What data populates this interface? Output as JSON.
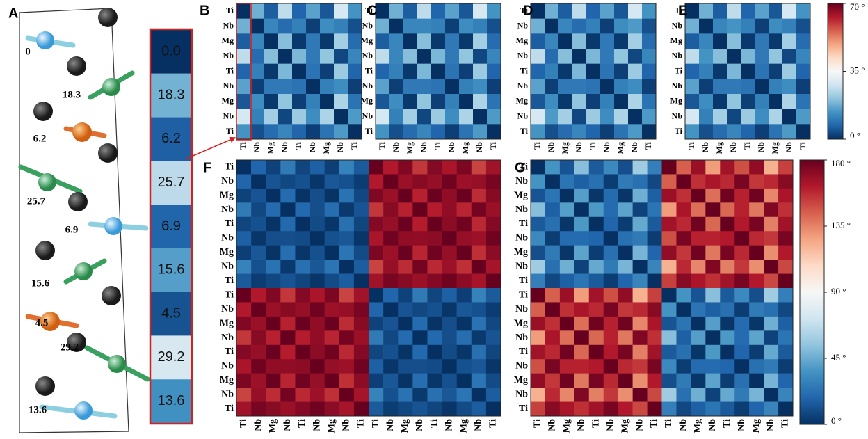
{
  "chart_data": [
    {
      "type": "column-map",
      "letter": "A",
      "values": [
        0,
        18.3,
        6.2,
        25.7,
        6.9,
        15.6,
        4.5,
        29.2,
        13.6
      ],
      "value_labels": [
        "0.0",
        "18.3",
        "6.2",
        "25.7",
        "6.9",
        "15.6",
        "4.5",
        "29.2",
        "13.6"
      ],
      "clim": [
        0,
        70
      ],
      "colormap": "RdBu_r"
    },
    {
      "type": "heatmap",
      "letter": "B",
      "categories": [
        "Ti",
        "Nb",
        "Mg",
        "Nb",
        "Ti",
        "Nb",
        "Mg",
        "Nb",
        "Ti"
      ],
      "clim": [
        0,
        70
      ],
      "colormap": "RdBu_r",
      "values": [
        [
          0,
          18,
          6,
          26,
          7,
          16,
          5,
          29,
          14
        ],
        [
          18,
          0,
          12,
          8,
          11,
          2,
          13,
          11,
          4
        ],
        [
          6,
          12,
          0,
          20,
          1,
          10,
          1,
          23,
          8
        ],
        [
          26,
          8,
          20,
          0,
          19,
          10,
          21,
          3,
          12
        ],
        [
          7,
          11,
          1,
          19,
          0,
          9,
          2,
          22,
          7
        ],
        [
          16,
          2,
          10,
          10,
          9,
          0,
          11,
          13,
          2
        ],
        [
          5,
          13,
          1,
          21,
          2,
          11,
          0,
          24,
          9
        ],
        [
          29,
          11,
          23,
          3,
          22,
          13,
          24,
          0,
          15
        ],
        [
          14,
          4,
          8,
          12,
          7,
          2,
          9,
          15,
          0
        ]
      ]
    },
    {
      "type": "heatmap",
      "letter": "C",
      "categories": [
        "Ti",
        "Nb",
        "Mg",
        "Nb",
        "Ti",
        "Nb",
        "Mg",
        "Nb",
        "Ti"
      ],
      "clim": [
        0,
        70
      ],
      "colormap": "RdBu_r",
      "values": [
        [
          0,
          18,
          6,
          26,
          7,
          16,
          5,
          29,
          14
        ],
        [
          18,
          0,
          12,
          12,
          11,
          2,
          13,
          11,
          4
        ],
        [
          6,
          12,
          0,
          20,
          1,
          10,
          1,
          23,
          8
        ],
        [
          26,
          12,
          20,
          0,
          19,
          10,
          21,
          3,
          12
        ],
        [
          7,
          11,
          1,
          19,
          0,
          9,
          2,
          22,
          7
        ],
        [
          16,
          2,
          10,
          10,
          9,
          0,
          11,
          13,
          2
        ],
        [
          5,
          13,
          1,
          21,
          2,
          11,
          0,
          24,
          9
        ],
        [
          29,
          11,
          23,
          3,
          22,
          13,
          24,
          0,
          15
        ],
        [
          14,
          4,
          8,
          12,
          7,
          2,
          9,
          15,
          0
        ]
      ]
    },
    {
      "type": "heatmap",
      "letter": "D",
      "categories": [
        "Ti",
        "Nb",
        "Mg",
        "Nb",
        "Ti",
        "Nb",
        "Mg",
        "Nb",
        "Ti"
      ],
      "clim": [
        0,
        70
      ],
      "colormap": "RdBu_r",
      "values": [
        [
          0,
          18,
          6,
          26,
          7,
          16,
          5,
          29,
          14
        ],
        [
          18,
          0,
          12,
          8,
          11,
          2,
          13,
          15,
          4
        ],
        [
          6,
          12,
          0,
          20,
          1,
          10,
          1,
          23,
          8
        ],
        [
          26,
          8,
          20,
          0,
          19,
          10,
          21,
          3,
          12
        ],
        [
          7,
          11,
          1,
          19,
          0,
          9,
          2,
          22,
          7
        ],
        [
          16,
          2,
          10,
          10,
          9,
          0,
          11,
          13,
          2
        ],
        [
          5,
          13,
          1,
          21,
          2,
          11,
          0,
          24,
          9
        ],
        [
          29,
          15,
          23,
          3,
          22,
          13,
          24,
          0,
          15
        ],
        [
          14,
          4,
          8,
          12,
          7,
          2,
          9,
          15,
          0
        ]
      ]
    },
    {
      "type": "heatmap",
      "letter": "E",
      "categories": [
        "Ti",
        "Nb",
        "Mg",
        "Nb",
        "Ti",
        "Nb",
        "Mg",
        "Nb",
        "Ti"
      ],
      "clim": [
        0,
        70
      ],
      "colormap": "RdBu_r",
      "values": [
        [
          0,
          18,
          6,
          26,
          7,
          16,
          5,
          29,
          14
        ],
        [
          18,
          0,
          12,
          14,
          11,
          2,
          13,
          11,
          4
        ],
        [
          6,
          12,
          0,
          20,
          1,
          10,
          1,
          23,
          8
        ],
        [
          26,
          14,
          20,
          0,
          19,
          10,
          21,
          3,
          12
        ],
        [
          7,
          11,
          1,
          19,
          0,
          9,
          2,
          22,
          7
        ],
        [
          16,
          2,
          10,
          10,
          9,
          0,
          11,
          13,
          2
        ],
        [
          5,
          13,
          1,
          21,
          2,
          11,
          0,
          24,
          9
        ],
        [
          29,
          11,
          23,
          3,
          22,
          13,
          24,
          0,
          15
        ],
        [
          14,
          4,
          8,
          12,
          7,
          2,
          9,
          15,
          0
        ]
      ],
      "colorbar": {
        "lim": [
          0,
          70
        ],
        "ticks": [
          {
            "value": 70,
            "label": "70 °"
          },
          {
            "value": 35,
            "label": "35 °"
          },
          {
            "value": 0,
            "label": "0 °"
          }
        ]
      }
    },
    {
      "type": "heatmap",
      "letter": "F",
      "categories": [
        "Ti",
        "Nb",
        "Mg",
        "Nb",
        "Ti",
        "Nb",
        "Mg",
        "Nb",
        "Ti",
        "Ti",
        "Nb",
        "Mg",
        "Nb",
        "Ti",
        "Nb",
        "Mg",
        "Nb",
        "Ti"
      ],
      "clim": [
        0,
        180
      ],
      "colormap": "RdBu_r",
      "values": [
        [
          0,
          18,
          6,
          26,
          7,
          16,
          5,
          29,
          14,
          180,
          162,
          174,
          154,
          173,
          164,
          175,
          151,
          166
        ],
        [
          18,
          0,
          12,
          8,
          11,
          2,
          13,
          11,
          4,
          162,
          180,
          168,
          172,
          169,
          178,
          167,
          169,
          176
        ],
        [
          6,
          12,
          0,
          20,
          1,
          10,
          1,
          23,
          8,
          174,
          168,
          180,
          160,
          179,
          170,
          179,
          157,
          172
        ],
        [
          26,
          8,
          20,
          0,
          19,
          10,
          21,
          3,
          12,
          154,
          172,
          160,
          180,
          161,
          170,
          159,
          177,
          168
        ],
        [
          7,
          11,
          1,
          19,
          0,
          9,
          2,
          22,
          7,
          173,
          169,
          179,
          161,
          180,
          171,
          178,
          158,
          173
        ],
        [
          16,
          2,
          10,
          10,
          9,
          0,
          11,
          13,
          2,
          164,
          178,
          170,
          170,
          171,
          180,
          169,
          167,
          178
        ],
        [
          5,
          13,
          1,
          21,
          2,
          11,
          0,
          24,
          9,
          175,
          167,
          179,
          159,
          178,
          169,
          180,
          156,
          171
        ],
        [
          29,
          11,
          23,
          3,
          22,
          13,
          24,
          0,
          15,
          151,
          169,
          157,
          177,
          158,
          167,
          156,
          180,
          165
        ],
        [
          14,
          4,
          8,
          12,
          7,
          2,
          9,
          15,
          0,
          166,
          176,
          172,
          168,
          173,
          178,
          171,
          165,
          180
        ],
        [
          180,
          162,
          174,
          154,
          173,
          164,
          175,
          151,
          166,
          0,
          18,
          6,
          26,
          7,
          16,
          5,
          29,
          14
        ],
        [
          162,
          180,
          168,
          172,
          169,
          178,
          167,
          169,
          176,
          18,
          0,
          12,
          8,
          11,
          2,
          13,
          11,
          4
        ],
        [
          174,
          168,
          180,
          160,
          179,
          170,
          179,
          157,
          172,
          6,
          12,
          0,
          20,
          1,
          10,
          1,
          23,
          8
        ],
        [
          154,
          172,
          160,
          180,
          161,
          170,
          159,
          177,
          168,
          26,
          8,
          20,
          0,
          19,
          10,
          21,
          3,
          12
        ],
        [
          173,
          169,
          179,
          161,
          180,
          171,
          178,
          158,
          173,
          7,
          11,
          1,
          19,
          0,
          9,
          2,
          22,
          7
        ],
        [
          164,
          178,
          170,
          170,
          171,
          180,
          169,
          167,
          178,
          16,
          2,
          10,
          10,
          9,
          0,
          11,
          13,
          2
        ],
        [
          175,
          167,
          179,
          159,
          178,
          169,
          180,
          156,
          171,
          5,
          13,
          1,
          21,
          2,
          11,
          0,
          24,
          9
        ],
        [
          151,
          169,
          157,
          177,
          158,
          167,
          156,
          180,
          165,
          29,
          11,
          23,
          3,
          22,
          13,
          24,
          0,
          15
        ],
        [
          166,
          176,
          172,
          168,
          173,
          178,
          171,
          165,
          180,
          14,
          4,
          8,
          12,
          7,
          2,
          9,
          15,
          0
        ]
      ]
    },
    {
      "type": "heatmap",
      "letter": "G",
      "categories": [
        "Ti",
        "Nb",
        "Mg",
        "Nb",
        "Ti",
        "Nb",
        "Mg",
        "Nb",
        "Ti",
        "Ti",
        "Nb",
        "Mg",
        "Nb",
        "Ti",
        "Nb",
        "Mg",
        "Nb",
        "Ti"
      ],
      "clim": [
        0,
        180
      ],
      "colormap": "RdBu_r",
      "values": [
        [
          0,
          36,
          12,
          52,
          14,
          32,
          10,
          58,
          28,
          180,
          144,
          168,
          128,
          166,
          148,
          170,
          122,
          152
        ],
        [
          36,
          0,
          24,
          16,
          22,
          4,
          26,
          22,
          8,
          144,
          180,
          156,
          164,
          158,
          176,
          154,
          158,
          172
        ],
        [
          12,
          24,
          0,
          40,
          2,
          20,
          2,
          46,
          16,
          168,
          156,
          180,
          140,
          178,
          160,
          178,
          134,
          164
        ],
        [
          52,
          16,
          40,
          0,
          38,
          20,
          42,
          6,
          24,
          128,
          164,
          140,
          180,
          142,
          160,
          138,
          174,
          156
        ],
        [
          14,
          22,
          2,
          38,
          0,
          18,
          4,
          44,
          14,
          166,
          158,
          178,
          142,
          180,
          162,
          176,
          136,
          166
        ],
        [
          32,
          4,
          20,
          20,
          18,
          0,
          22,
          26,
          4,
          148,
          176,
          160,
          160,
          162,
          180,
          158,
          154,
          176
        ],
        [
          10,
          26,
          2,
          42,
          4,
          22,
          0,
          48,
          18,
          170,
          154,
          178,
          138,
          176,
          158,
          180,
          132,
          162
        ],
        [
          58,
          22,
          46,
          6,
          44,
          26,
          48,
          0,
          30,
          122,
          158,
          134,
          174,
          136,
          154,
          132,
          180,
          150
        ],
        [
          28,
          8,
          16,
          24,
          14,
          4,
          18,
          30,
          0,
          152,
          172,
          164,
          156,
          166,
          176,
          162,
          150,
          180
        ],
        [
          180,
          144,
          168,
          128,
          166,
          148,
          170,
          122,
          152,
          0,
          36,
          12,
          52,
          14,
          32,
          10,
          58,
          28
        ],
        [
          144,
          180,
          156,
          164,
          158,
          176,
          154,
          158,
          172,
          36,
          0,
          24,
          16,
          22,
          4,
          26,
          22,
          8
        ],
        [
          168,
          156,
          180,
          140,
          178,
          160,
          178,
          134,
          164,
          12,
          24,
          0,
          40,
          2,
          20,
          2,
          46,
          16
        ],
        [
          128,
          164,
          140,
          180,
          142,
          160,
          138,
          174,
          156,
          52,
          16,
          40,
          0,
          38,
          20,
          42,
          6,
          24
        ],
        [
          166,
          158,
          178,
          142,
          180,
          162,
          176,
          136,
          166,
          14,
          22,
          2,
          38,
          0,
          18,
          4,
          44,
          14
        ],
        [
          148,
          176,
          160,
          160,
          162,
          180,
          158,
          154,
          176,
          32,
          4,
          20,
          20,
          18,
          0,
          22,
          26,
          4
        ],
        [
          170,
          154,
          178,
          138,
          176,
          158,
          180,
          132,
          162,
          10,
          26,
          2,
          42,
          4,
          22,
          0,
          48,
          18
        ],
        [
          122,
          158,
          134,
          174,
          136,
          154,
          132,
          180,
          150,
          58,
          22,
          46,
          6,
          44,
          26,
          48,
          0,
          30
        ],
        [
          152,
          172,
          164,
          156,
          166,
          176,
          162,
          150,
          180,
          28,
          8,
          16,
          24,
          14,
          4,
          18,
          30,
          0
        ]
      ],
      "colorbar": {
        "lim": [
          0,
          180
        ],
        "ticks": [
          {
            "value": 180,
            "label": "180 °"
          },
          {
            "value": 135,
            "label": "135 °"
          },
          {
            "value": 90,
            "label": "90 °"
          },
          {
            "value": 45,
            "label": "45 °"
          },
          {
            "value": 0,
            "label": "0 °"
          }
        ]
      }
    }
  ]
}
